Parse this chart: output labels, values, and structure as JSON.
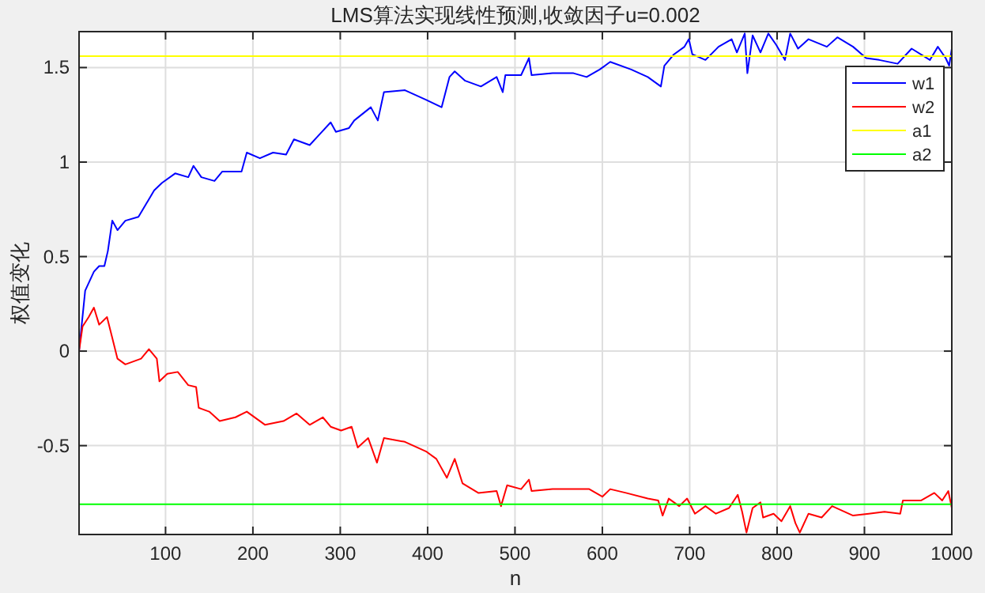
{
  "chart_data": {
    "type": "line",
    "title": "LMS算法实现线性预测,收敛因子u=0.002",
    "xlabel": "n",
    "ylabel": "权值变化",
    "xlim": [
      1,
      1000
    ],
    "ylim": [
      -0.97,
      1.69
    ],
    "xticks": [
      100,
      200,
      300,
      400,
      500,
      600,
      700,
      800,
      900,
      1000
    ],
    "yticks": [
      -0.5,
      0,
      0.5,
      1,
      1.5
    ],
    "grid": true,
    "legend": "top right",
    "series": [
      {
        "name": "w1",
        "color": "#0000ff",
        "x": [
          1,
          8,
          18,
          24,
          30,
          34,
          39,
          45,
          54,
          69,
          78,
          87,
          96,
          111,
          126,
          132,
          141,
          156,
          165,
          187,
          193,
          208,
          223,
          238,
          247,
          265,
          277,
          289,
          295,
          310,
          316,
          335,
          343,
          350,
          374,
          398,
          416,
          425,
          431,
          443,
          461,
          479,
          486,
          489,
          507,
          516,
          519,
          543,
          567,
          582,
          597,
          609,
          633,
          652,
          667,
          671,
          682,
          694,
          699,
          703,
          718,
          733,
          748,
          754,
          763,
          766,
          772,
          781,
          790,
          799,
          809,
          815,
          824,
          836,
          857,
          869,
          887,
          902,
          917,
          938,
          954,
          975,
          984,
          993,
          997,
          1000
        ],
        "values": [
          0.0,
          0.32,
          0.42,
          0.45,
          0.45,
          0.53,
          0.69,
          0.64,
          0.69,
          0.71,
          0.78,
          0.85,
          0.89,
          0.94,
          0.92,
          0.98,
          0.92,
          0.9,
          0.95,
          0.95,
          1.05,
          1.02,
          1.05,
          1.04,
          1.12,
          1.09,
          1.15,
          1.21,
          1.16,
          1.18,
          1.22,
          1.29,
          1.22,
          1.37,
          1.38,
          1.33,
          1.29,
          1.45,
          1.48,
          1.43,
          1.4,
          1.45,
          1.37,
          1.46,
          1.46,
          1.55,
          1.46,
          1.47,
          1.47,
          1.45,
          1.49,
          1.53,
          1.49,
          1.45,
          1.4,
          1.51,
          1.57,
          1.61,
          1.65,
          1.57,
          1.54,
          1.61,
          1.65,
          1.58,
          1.68,
          1.47,
          1.67,
          1.58,
          1.68,
          1.62,
          1.54,
          1.68,
          1.6,
          1.65,
          1.61,
          1.66,
          1.61,
          1.55,
          1.54,
          1.52,
          1.6,
          1.54,
          1.61,
          1.55,
          1.51,
          1.6
        ]
      },
      {
        "name": "w2",
        "color": "#ff0000",
        "x": [
          1,
          5,
          12,
          18,
          24,
          33,
          39,
          45,
          54,
          72,
          81,
          90,
          93,
          102,
          114,
          126,
          135,
          138,
          150,
          162,
          180,
          193,
          214,
          235,
          250,
          265,
          280,
          289,
          301,
          313,
          320,
          332,
          342,
          350,
          374,
          398,
          410,
          422,
          431,
          440,
          458,
          479,
          484,
          491,
          507,
          516,
          519,
          543,
          567,
          585,
          600,
          609,
          627,
          652,
          664,
          669,
          676,
          688,
          697,
          706,
          718,
          730,
          745,
          755,
          760,
          765,
          772,
          781,
          784,
          796,
          805,
          815,
          821,
          826,
          836,
          851,
          863,
          887,
          905,
          923,
          941,
          944,
          965,
          980,
          989,
          996,
          1000
        ],
        "values": [
          0.0,
          0.13,
          0.18,
          0.23,
          0.14,
          0.18,
          0.07,
          -0.04,
          -0.07,
          -0.04,
          0.01,
          -0.04,
          -0.16,
          -0.12,
          -0.11,
          -0.18,
          -0.19,
          -0.3,
          -0.32,
          -0.37,
          -0.35,
          -0.32,
          -0.39,
          -0.37,
          -0.33,
          -0.39,
          -0.35,
          -0.4,
          -0.42,
          -0.4,
          -0.51,
          -0.46,
          -0.59,
          -0.46,
          -0.48,
          -0.53,
          -0.57,
          -0.67,
          -0.57,
          -0.7,
          -0.75,
          -0.74,
          -0.82,
          -0.71,
          -0.73,
          -0.68,
          -0.74,
          -0.73,
          -0.73,
          -0.73,
          -0.77,
          -0.73,
          -0.75,
          -0.78,
          -0.79,
          -0.87,
          -0.78,
          -0.82,
          -0.78,
          -0.86,
          -0.82,
          -0.86,
          -0.83,
          -0.76,
          -0.85,
          -0.96,
          -0.83,
          -0.8,
          -0.88,
          -0.86,
          -0.9,
          -0.82,
          -0.91,
          -0.96,
          -0.86,
          -0.88,
          -0.82,
          -0.87,
          -0.86,
          -0.85,
          -0.86,
          -0.79,
          -0.79,
          -0.75,
          -0.79,
          -0.74,
          -0.83
        ]
      },
      {
        "name": "a1",
        "color": "#ffff00",
        "x": [
          1,
          1000
        ],
        "values": [
          1.56,
          1.56
        ]
      },
      {
        "name": "a2",
        "color": "#00ff00",
        "x": [
          1,
          1000
        ],
        "values": [
          -0.81,
          -0.81
        ]
      }
    ]
  }
}
